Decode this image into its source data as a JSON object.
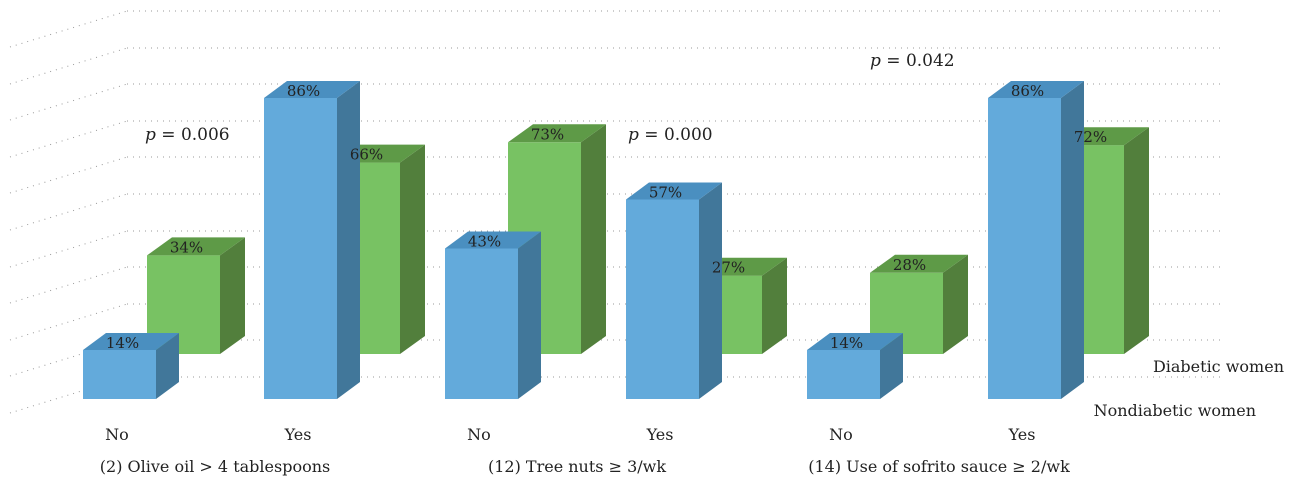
{
  "chart_data": {
    "type": "bar",
    "style": "3d-clustered",
    "grid": "dotted",
    "legend": "bottom-right, depth-row labels",
    "ylim": [
      0,
      100
    ],
    "series": [
      {
        "name": "Nondiabetic women",
        "color": "#63aadb",
        "side": "#41779a",
        "top": "#4a8fc0"
      },
      {
        "name": "Diabetic women",
        "color": "#78c263",
        "side": "#527f3c",
        "top": "#5e9a47"
      }
    ],
    "groups": [
      {
        "label": "(2) Olive oil > 4 tablespoons",
        "p_prefix": "p",
        "p_rest": " = 0.006",
        "categories": [
          {
            "label": "No",
            "values": [
              14,
              34
            ],
            "value_labels": [
              "14%",
              "34%"
            ]
          },
          {
            "label": "Yes",
            "values": [
              86,
              66
            ],
            "value_labels": [
              "86%",
              "66%"
            ]
          }
        ]
      },
      {
        "label": "(12) Tree nuts ≥ 3/wk",
        "p_prefix": "p",
        "p_rest": " = 0.000",
        "categories": [
          {
            "label": "No",
            "values": [
              43,
              73
            ],
            "value_labels": [
              "43%",
              "73%"
            ]
          },
          {
            "label": "Yes",
            "values": [
              57,
              27
            ],
            "value_labels": [
              "57%",
              "27%"
            ]
          }
        ]
      },
      {
        "label": "(14) Use of sofrito sauce ≥ 2/wk",
        "p_prefix": "p",
        "p_rest": " = 0.042",
        "categories": [
          {
            "label": "No",
            "values": [
              14,
              28
            ],
            "value_labels": [
              "14%",
              "28%"
            ]
          },
          {
            "label": "Yes",
            "values": [
              86,
              72
            ],
            "value_labels": [
              "86%",
              "72%"
            ]
          }
        ]
      }
    ]
  }
}
